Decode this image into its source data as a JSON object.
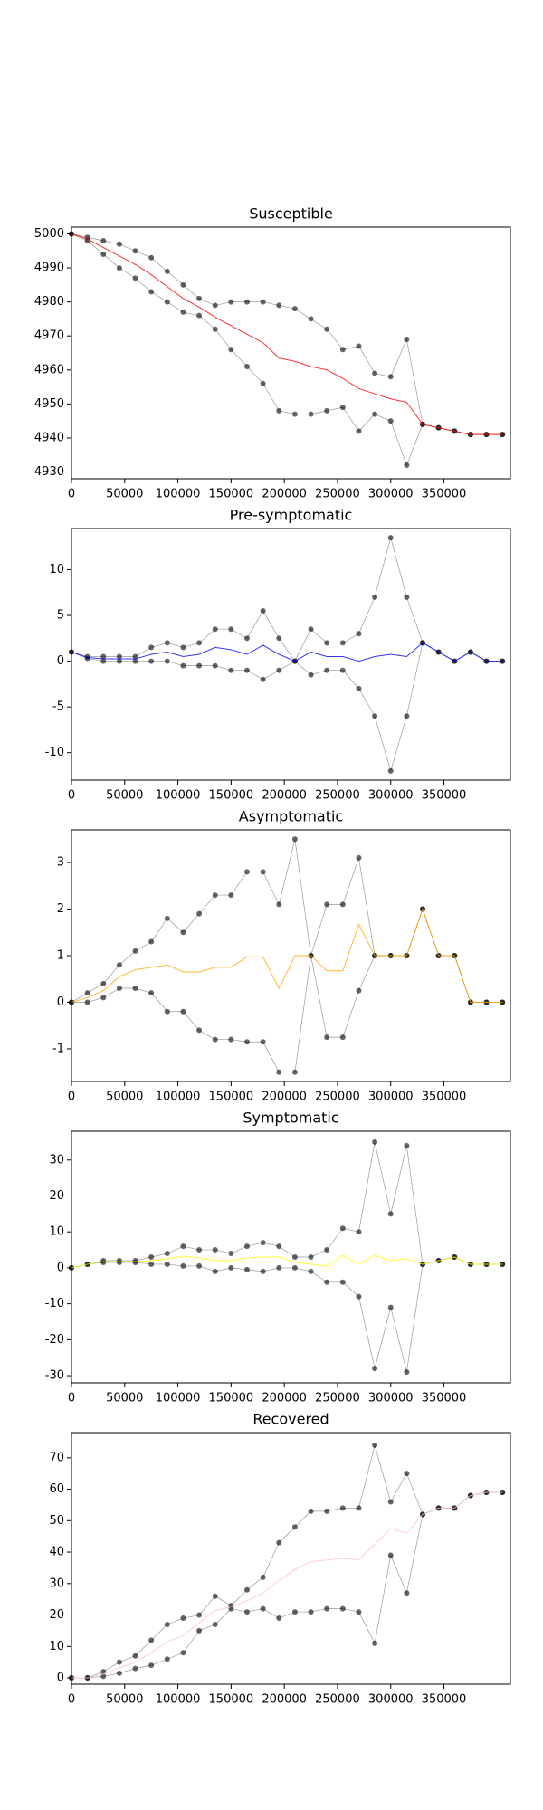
{
  "chart_data": [
    {
      "type": "line",
      "title": "Susceptible",
      "x": [
        0,
        15000,
        30000,
        45000,
        60000,
        75000,
        90000,
        105000,
        120000,
        135000,
        150000,
        165000,
        180000,
        195000,
        210000,
        225000,
        240000,
        255000,
        270000,
        285000,
        300000,
        315000,
        330000,
        345000,
        360000,
        375000,
        390000,
        405000
      ],
      "xlim": [
        0,
        412500
      ],
      "xticks": [
        0,
        50000,
        100000,
        150000,
        200000,
        250000,
        300000,
        350000
      ],
      "ylim": [
        4928,
        5002
      ],
      "yticks": [
        4930,
        4940,
        4950,
        4960,
        4970,
        4980,
        4990,
        5000
      ],
      "series": [
        {
          "color": "#ff0000",
          "values": [
            5000,
            4998.5,
            4996,
            4993.5,
            4991,
            4988,
            4984.5,
            4981,
            4978.5,
            4975.5,
            4973,
            4970.5,
            4968,
            4963.5,
            4962.5,
            4961,
            4960,
            4957.5,
            4954.5,
            4953,
            4951.5,
            4950.5,
            4944,
            4943,
            4942,
            4941,
            4941,
            4941
          ]
        },
        {
          "color": "#808080",
          "markers": true,
          "values": [
            5000,
            4999,
            4998,
            4997,
            4995,
            4993,
            4989,
            4985,
            4981,
            4979,
            4980,
            4980,
            4980,
            4979,
            4978,
            4975,
            4972,
            4966,
            4967,
            4959,
            4958,
            4969,
            4944,
            4943,
            4942,
            4941,
            4941,
            4941
          ]
        },
        {
          "color": "#808080",
          "markers": true,
          "values": [
            5000,
            4998,
            4994,
            4990,
            4987,
            4983,
            4980,
            4977,
            4976,
            4972,
            4966,
            4961,
            4956,
            4948,
            4947,
            4947,
            4948,
            4949,
            4942,
            4947,
            4945,
            4932,
            4944,
            4943,
            4942,
            4941,
            4941,
            4941
          ]
        }
      ]
    },
    {
      "type": "line",
      "title": "Pre-symptomatic",
      "x": [
        0,
        15000,
        30000,
        45000,
        60000,
        75000,
        90000,
        105000,
        120000,
        135000,
        150000,
        165000,
        180000,
        195000,
        210000,
        225000,
        240000,
        255000,
        270000,
        285000,
        300000,
        315000,
        330000,
        345000,
        360000,
        375000,
        390000,
        405000
      ],
      "xlim": [
        0,
        412500
      ],
      "xticks": [
        0,
        50000,
        100000,
        150000,
        200000,
        250000,
        300000,
        350000
      ],
      "ylim": [
        -13,
        14.5
      ],
      "yticks": [
        -10,
        -5,
        0,
        5,
        10
      ],
      "series": [
        {
          "color": "#0000ff",
          "values": [
            1,
            0.4,
            0.25,
            0.25,
            0.25,
            0.75,
            1,
            0.5,
            0.75,
            1.5,
            1.25,
            0.75,
            1.75,
            0.75,
            0,
            1,
            0.5,
            0.5,
            0,
            0.5,
            0.75,
            0.5,
            2,
            1,
            0,
            1,
            0,
            0
          ]
        },
        {
          "color": "#808080",
          "markers": true,
          "values": [
            1,
            0.5,
            0.5,
            0.5,
            0.5,
            1.5,
            2,
            1.5,
            2,
            3.5,
            3.5,
            2.5,
            5.5,
            2.5,
            0,
            3.5,
            2,
            2,
            3,
            7,
            13.5,
            7,
            2,
            1,
            0,
            1,
            0,
            0
          ]
        },
        {
          "color": "#808080",
          "markers": true,
          "values": [
            1,
            0.3,
            0,
            0,
            0,
            0,
            0,
            -0.5,
            -0.5,
            -0.5,
            -1,
            -1,
            -2,
            -1,
            0,
            -1.5,
            -1,
            -1,
            -3,
            -6,
            -12,
            -6,
            2,
            1,
            0,
            1,
            0,
            0
          ]
        }
      ]
    },
    {
      "type": "line",
      "title": "Asymptomatic",
      "x": [
        0,
        15000,
        30000,
        45000,
        60000,
        75000,
        90000,
        105000,
        120000,
        135000,
        150000,
        165000,
        180000,
        195000,
        210000,
        225000,
        240000,
        255000,
        270000,
        285000,
        300000,
        315000,
        330000,
        345000,
        360000,
        375000,
        390000,
        405000
      ],
      "xlim": [
        0,
        412500
      ],
      "xticks": [
        0,
        50000,
        100000,
        150000,
        200000,
        250000,
        300000,
        350000
      ],
      "ylim": [
        -1.7,
        3.7
      ],
      "yticks": [
        -1,
        0,
        1,
        2,
        3
      ],
      "series": [
        {
          "color": "#ffa500",
          "values": [
            0,
            0.1,
            0.25,
            0.55,
            0.7,
            0.75,
            0.8,
            0.65,
            0.65,
            0.75,
            0.75,
            0.975,
            0.975,
            0.3,
            1,
            1,
            0.675,
            0.675,
            1.675,
            1,
            1,
            1,
            2,
            1,
            1,
            0,
            0,
            0
          ]
        },
        {
          "color": "#808080",
          "markers": true,
          "values": [
            0,
            0.2,
            0.4,
            0.8,
            1.1,
            1.3,
            1.8,
            1.5,
            1.9,
            2.3,
            2.3,
            2.8,
            2.8,
            2.1,
            3.5,
            1,
            2.1,
            2.1,
            3.1,
            1,
            1,
            1,
            2,
            1,
            1,
            0,
            0,
            0
          ]
        },
        {
          "color": "#808080",
          "markers": true,
          "values": [
            0,
            0,
            0.1,
            0.3,
            0.3,
            0.2,
            -0.2,
            -0.2,
            -0.6,
            -0.8,
            -0.8,
            -0.85,
            -0.85,
            -1.5,
            -1.5,
            1,
            -0.75,
            -0.75,
            0.25,
            1,
            1,
            1,
            2,
            1,
            1,
            0,
            0,
            0
          ]
        }
      ]
    },
    {
      "type": "line",
      "title": "Symptomatic",
      "x": [
        0,
        15000,
        30000,
        45000,
        60000,
        75000,
        90000,
        105000,
        120000,
        135000,
        150000,
        165000,
        180000,
        195000,
        210000,
        225000,
        240000,
        255000,
        270000,
        285000,
        300000,
        315000,
        330000,
        345000,
        360000,
        375000,
        390000,
        405000
      ],
      "xlim": [
        0,
        412500
      ],
      "xticks": [
        0,
        50000,
        100000,
        150000,
        200000,
        250000,
        300000,
        350000
      ],
      "ylim": [
        -32,
        38
      ],
      "yticks": [
        -30,
        -20,
        -10,
        0,
        10,
        20,
        30
      ],
      "series": [
        {
          "color": "#ffff00",
          "values": [
            0,
            1,
            1.75,
            1.75,
            1.75,
            2,
            2.5,
            3.25,
            2.75,
            2,
            2,
            2.75,
            3,
            3,
            1.5,
            1,
            0.5,
            3.5,
            1,
            3.5,
            2,
            2.5,
            1,
            2,
            3,
            1,
            1,
            1
          ]
        },
        {
          "color": "#808080",
          "markers": true,
          "values": [
            0,
            1,
            2,
            2,
            2,
            3,
            4,
            6,
            5,
            5,
            4,
            6,
            7,
            6,
            3,
            3,
            5,
            11,
            10,
            35,
            15,
            34,
            1,
            2,
            3,
            1,
            1,
            1
          ]
        },
        {
          "color": "#808080",
          "markers": true,
          "values": [
            0,
            1,
            1.5,
            1.5,
            1.5,
            1,
            1,
            0.5,
            0.5,
            -1,
            0,
            -0.5,
            -1,
            0,
            0,
            -1,
            -4,
            -4,
            -8,
            -28,
            -11,
            -29,
            1,
            2,
            3,
            1,
            1,
            1
          ]
        }
      ]
    },
    {
      "type": "line",
      "title": "Recovered",
      "x": [
        0,
        15000,
        30000,
        45000,
        60000,
        75000,
        90000,
        105000,
        120000,
        135000,
        150000,
        165000,
        180000,
        195000,
        210000,
        225000,
        240000,
        255000,
        270000,
        285000,
        300000,
        315000,
        330000,
        345000,
        360000,
        375000,
        390000,
        405000
      ],
      "xlim": [
        0,
        412500
      ],
      "xticks": [
        0,
        50000,
        100000,
        150000,
        200000,
        250000,
        300000,
        350000
      ],
      "ylim": [
        -2,
        78
      ],
      "yticks": [
        0,
        10,
        20,
        30,
        40,
        50,
        60,
        70
      ],
      "series": [
        {
          "color": "#ffc0cb",
          "values": [
            0,
            0,
            1.25,
            3.25,
            5,
            8,
            11.5,
            13.5,
            17.5,
            21.5,
            22.5,
            24.5,
            27,
            31,
            34.5,
            37,
            37.5,
            38,
            37.5,
            42.5,
            47.5,
            46,
            52,
            54,
            54,
            58,
            59,
            59
          ]
        },
        {
          "color": "#808080",
          "markers": true,
          "values": [
            0,
            0,
            2,
            5,
            7,
            12,
            17,
            19,
            20,
            26,
            23,
            28,
            32,
            43,
            48,
            53,
            53,
            54,
            54,
            74,
            56,
            65,
            52,
            54,
            54,
            58,
            59,
            59
          ]
        },
        {
          "color": "#808080",
          "markers": true,
          "values": [
            0,
            0,
            0.5,
            1.5,
            3,
            4,
            6,
            8,
            15,
            17,
            22,
            21,
            22,
            19,
            21,
            21,
            22,
            22,
            21,
            11,
            39,
            27,
            52,
            54,
            54,
            58,
            59,
            59
          ]
        }
      ]
    }
  ]
}
